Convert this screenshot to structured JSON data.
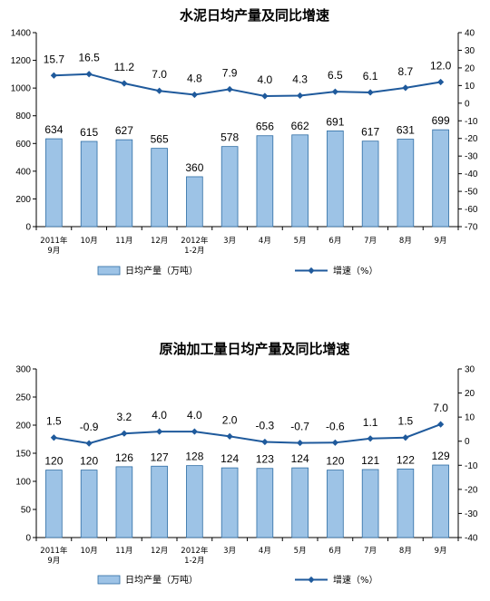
{
  "chart_data": [
    {
      "type": "bar",
      "title": "水泥日均产量及同比增速",
      "categories": [
        [
          "2011年",
          "9月"
        ],
        [
          "10月"
        ],
        [
          "11月"
        ],
        [
          "12月"
        ],
        [
          "2012年",
          "1-2月"
        ],
        [
          "3月"
        ],
        [
          "4月"
        ],
        [
          "5月"
        ],
        [
          "6月"
        ],
        [
          "7月"
        ],
        [
          "8月"
        ],
        [
          "9月"
        ]
      ],
      "series": [
        {
          "name": "日均产量（万吨）",
          "type": "bar",
          "axis": "left",
          "values": [
            634,
            615,
            627,
            565,
            360,
            578,
            656,
            662,
            691,
            617,
            631,
            699
          ]
        },
        {
          "name": "增速（%）",
          "type": "line",
          "axis": "right",
          "values": [
            15.7,
            16.5,
            11.2,
            7.0,
            4.8,
            7.9,
            4.0,
            4.3,
            6.5,
            6.1,
            8.7,
            12.0
          ],
          "labels": [
            "15.7",
            "16.5",
            "11.2",
            "7.0",
            "4.8",
            "7.9",
            "4.0",
            "4.3",
            "6.5",
            "6.1",
            "8.7",
            "12.0"
          ]
        }
      ],
      "ylim_left": [
        0,
        1400
      ],
      "yticks_left": [
        0,
        200,
        400,
        600,
        800,
        1000,
        1200,
        1400
      ],
      "ylim_right": [
        -70,
        40
      ],
      "yticks_right": [
        -70,
        -60,
        -50,
        -40,
        -30,
        -20,
        -10,
        0,
        10,
        20,
        30,
        40
      ],
      "grid": false,
      "legend": "bottom",
      "colors": {
        "bar_fill": "#9dc3e6",
        "bar_stroke": "#2e6da4",
        "line": "#1f5a9c"
      }
    },
    {
      "type": "bar",
      "title": "原油加工量日均产量及同比增速",
      "categories": [
        [
          "2011年",
          "9月"
        ],
        [
          "10月"
        ],
        [
          "11月"
        ],
        [
          "12月"
        ],
        [
          "2012年",
          "1-2月"
        ],
        [
          "3月"
        ],
        [
          "4月"
        ],
        [
          "5月"
        ],
        [
          "6月"
        ],
        [
          "7月"
        ],
        [
          "8月"
        ],
        [
          "9月"
        ]
      ],
      "series": [
        {
          "name": "日均产量（万吨）",
          "type": "bar",
          "axis": "left",
          "values": [
            120,
            120,
            126,
            127,
            128,
            124,
            123,
            124,
            120,
            121,
            122,
            129
          ]
        },
        {
          "name": "增速（%）",
          "type": "line",
          "axis": "right",
          "values": [
            1.5,
            -0.9,
            3.2,
            4.0,
            4.0,
            2.0,
            -0.3,
            -0.7,
            -0.6,
            1.1,
            1.5,
            7.0
          ],
          "labels": [
            "1.5",
            "-0.9",
            "3.2",
            "4.0",
            "4.0",
            "2.0",
            "-0.3",
            "-0.7",
            "-0.6",
            "1.1",
            "1.5",
            "7.0"
          ]
        }
      ],
      "ylim_left": [
        0,
        300
      ],
      "yticks_left": [
        0,
        50,
        100,
        150,
        200,
        250,
        300
      ],
      "ylim_right": [
        -40,
        30
      ],
      "yticks_right": [
        -40,
        -30,
        -20,
        -10,
        0,
        10,
        20,
        30
      ],
      "grid": false,
      "legend": "bottom",
      "colors": {
        "bar_fill": "#9dc3e6",
        "bar_stroke": "#2e6da4",
        "line": "#1f5a9c"
      }
    }
  ]
}
